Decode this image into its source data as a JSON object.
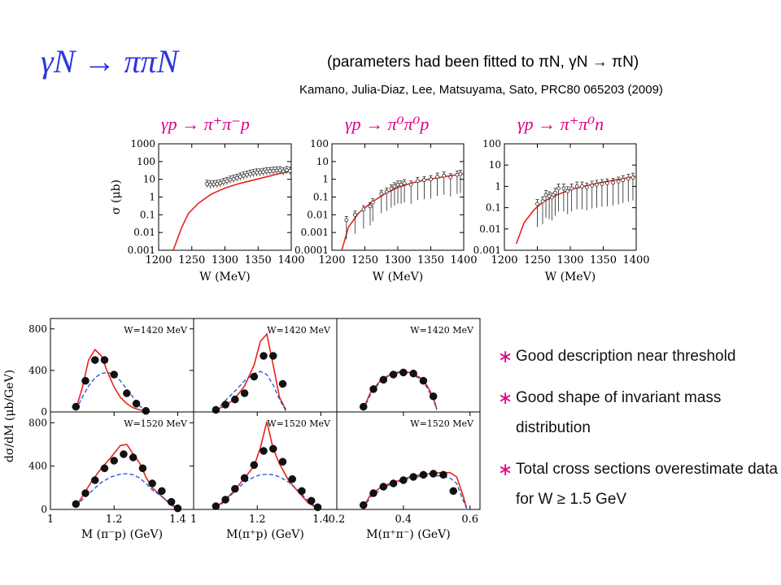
{
  "slide": {
    "title": "γN → ππN",
    "note": "(parameters had been fitted to πN, γN → πN)",
    "citation": "Kamano, Julia-Diaz, Lee, Matsuyama, Sato, PRC80 065203 (2009)",
    "reactions": [
      "γp → π⁺π⁻p",
      "γp → π⁰π⁰p",
      "γp → π⁺π⁰n"
    ],
    "bullets": [
      {
        "text": "Good description near threshold"
      },
      {
        "text": "Good shape of invariant mass distribution"
      },
      {
        "text": "Total cross sections overestimate data for W ≥ 1.5 GeV"
      }
    ],
    "colors": {
      "title": "#2b34e0",
      "reaction": "#e2008a",
      "model": "#e8231b",
      "alt_model": "#1f4fd6",
      "bullet_star": "#e2008a"
    }
  },
  "chart_data": [
    {
      "type": "line",
      "scale_y": "log",
      "xlabel": "W (MeV)",
      "ylabel": "σ (μb)",
      "xlim": [
        1200,
        1400
      ],
      "ylim": [
        0.001,
        1000
      ],
      "xticks": [
        "1200",
        "1250",
        "1300",
        "1350",
        "1400"
      ],
      "yticks": [
        "0.001",
        "0.01",
        "0.1",
        "1",
        "10",
        "100",
        "1000"
      ],
      "series": [
        {
          "kind": "line",
          "x": [
            1222,
            1235,
            1245,
            1260,
            1280,
            1300,
            1320,
            1340,
            1360,
            1380,
            1395
          ],
          "y": [
            0.001,
            0.02,
            0.12,
            0.45,
            1.5,
            3.2,
            5.5,
            8.5,
            13,
            20,
            26
          ]
        },
        {
          "kind": "points",
          "x": [
            1273,
            1278,
            1283,
            1288,
            1293,
            1298,
            1303,
            1308,
            1313,
            1318,
            1323,
            1328,
            1333,
            1338,
            1343,
            1348,
            1353,
            1358,
            1363,
            1368,
            1373,
            1378,
            1383,
            1388,
            1393,
            1398
          ],
          "y": [
            5.5,
            5.0,
            5.2,
            5.5,
            6,
            7,
            8,
            9.5,
            10.5,
            12,
            14,
            16,
            18,
            20,
            22,
            24,
            24,
            26,
            28,
            29,
            30,
            31,
            32,
            28,
            33,
            30
          ]
        }
      ]
    },
    {
      "type": "line",
      "scale_y": "log",
      "xlabel": "W (MeV)",
      "ylabel": "",
      "xlim": [
        1200,
        1400
      ],
      "ylim": [
        0.0001,
        100
      ],
      "xticks": [
        "1200",
        "1250",
        "1300",
        "1350",
        "1400"
      ],
      "yticks": [
        "0.0001",
        "0.001",
        "0.01",
        "0.1",
        "1",
        "10",
        "100"
      ],
      "series": [
        {
          "kind": "line",
          "x": [
            1215,
            1225,
            1240,
            1260,
            1280,
            1300,
            1320,
            1340,
            1360,
            1380,
            1400
          ],
          "y": [
            0.0001,
            0.002,
            0.012,
            0.05,
            0.15,
            0.35,
            0.6,
            0.9,
            1.2,
            1.6,
            2.0
          ]
        },
        {
          "kind": "points",
          "x": [
            1222,
            1235,
            1248,
            1258,
            1262,
            1275,
            1283,
            1290,
            1295,
            1300,
            1305,
            1310,
            1320,
            1330,
            1340,
            1350,
            1360,
            1370,
            1380,
            1390,
            1395
          ],
          "y": [
            0.005,
            0.01,
            0.02,
            0.03,
            0.05,
            0.15,
            0.2,
            0.3,
            0.4,
            0.5,
            0.5,
            0.6,
            0.5,
            0.8,
            0.9,
            1.0,
            1.4,
            1.6,
            1.3,
            1.8,
            2.0
          ]
        }
      ]
    },
    {
      "type": "line",
      "scale_y": "log",
      "xlabel": "W (MeV)",
      "ylabel": "",
      "xlim": [
        1200,
        1400
      ],
      "ylim": [
        0.001,
        100
      ],
      "xticks": [
        "1200",
        "1250",
        "1300",
        "1350",
        "1400"
      ],
      "yticks": [
        "0.001",
        "0.01",
        "0.1",
        "1",
        "10",
        "100"
      ],
      "series": [
        {
          "kind": "line",
          "x": [
            1218,
            1230,
            1245,
            1260,
            1280,
            1300,
            1320,
            1340,
            1360,
            1380,
            1400
          ],
          "y": [
            0.002,
            0.02,
            0.08,
            0.2,
            0.4,
            0.7,
            1.0,
            1.4,
            1.8,
            2.3,
            3.0
          ]
        },
        {
          "kind": "points",
          "x": [
            1250,
            1258,
            1263,
            1268,
            1272,
            1277,
            1282,
            1290,
            1296,
            1302,
            1310,
            1318,
            1325,
            1333,
            1340,
            1348,
            1356,
            1365,
            1373,
            1380,
            1388,
            1395
          ],
          "y": [
            0.15,
            0.2,
            0.4,
            0.35,
            0.3,
            0.5,
            0.8,
            0.8,
            0.6,
            0.8,
            1.0,
            1.0,
            0.9,
            1.1,
            1.2,
            1.3,
            1.4,
            1.5,
            1.7,
            2.0,
            2.3,
            2.6
          ]
        }
      ]
    },
    {
      "type": "line",
      "panel_label": "W=1420 MeV",
      "xlabel": "",
      "ylabel": "dσ/dM (μb/GeV)",
      "xlim": [
        1.0,
        1.45
      ],
      "ylim": [
        0,
        900
      ],
      "xticks": [],
      "yticks": [
        "0",
        "400",
        "800"
      ],
      "series": [
        {
          "kind": "line",
          "style": "solid",
          "x": [
            1.08,
            1.1,
            1.12,
            1.14,
            1.16,
            1.18,
            1.2,
            1.22,
            1.24,
            1.26,
            1.28,
            1.3
          ],
          "y": [
            30,
            230,
            500,
            600,
            540,
            380,
            240,
            140,
            80,
            40,
            20,
            10
          ]
        },
        {
          "kind": "line",
          "style": "dashed",
          "x": [
            1.08,
            1.1,
            1.12,
            1.14,
            1.16,
            1.18,
            1.2,
            1.22,
            1.24,
            1.26,
            1.28,
            1.3
          ],
          "y": [
            20,
            140,
            250,
            330,
            370,
            380,
            360,
            300,
            220,
            140,
            60,
            10
          ]
        },
        {
          "kind": "points",
          "x": [
            1.08,
            1.11,
            1.14,
            1.17,
            1.2,
            1.24,
            1.27,
            1.3
          ],
          "y": [
            50,
            300,
            500,
            500,
            360,
            180,
            80,
            10
          ]
        }
      ]
    },
    {
      "type": "line",
      "panel_label": "W=1420 MeV",
      "xlabel": "",
      "ylabel": "",
      "xlim": [
        1.0,
        1.45
      ],
      "ylim": [
        0,
        900
      ],
      "xticks": [],
      "yticks": [],
      "series": [
        {
          "kind": "line",
          "style": "solid",
          "x": [
            1.07,
            1.1,
            1.13,
            1.16,
            1.19,
            1.21,
            1.23,
            1.25,
            1.27,
            1.29
          ],
          "y": [
            20,
            60,
            130,
            250,
            450,
            680,
            750,
            450,
            140,
            20
          ]
        },
        {
          "kind": "line",
          "style": "dashed",
          "x": [
            1.07,
            1.1,
            1.13,
            1.16,
            1.19,
            1.21,
            1.23,
            1.25,
            1.27,
            1.29
          ],
          "y": [
            10,
            110,
            200,
            300,
            370,
            390,
            360,
            260,
            120,
            10
          ]
        },
        {
          "kind": "points",
          "x": [
            1.07,
            1.1,
            1.13,
            1.16,
            1.19,
            1.22,
            1.25,
            1.28
          ],
          "y": [
            20,
            70,
            120,
            180,
            340,
            540,
            540,
            270
          ]
        }
      ]
    },
    {
      "type": "line",
      "panel_label": "W=1420 MeV",
      "xlabel": "",
      "ylabel": "",
      "xlim": [
        0.2,
        0.63
      ],
      "ylim": [
        0,
        900
      ],
      "xticks": [],
      "yticks": [],
      "series": [
        {
          "kind": "line",
          "style": "solid",
          "x": [
            0.28,
            0.3,
            0.33,
            0.36,
            0.39,
            0.42,
            0.45,
            0.47,
            0.49,
            0.5
          ],
          "y": [
            30,
            180,
            300,
            360,
            390,
            380,
            330,
            260,
            140,
            30
          ]
        },
        {
          "kind": "line",
          "style": "dashed",
          "x": [
            0.28,
            0.3,
            0.33,
            0.36,
            0.39,
            0.42,
            0.45,
            0.47,
            0.49,
            0.5
          ],
          "y": [
            20,
            160,
            290,
            355,
            380,
            370,
            320,
            240,
            120,
            20
          ]
        },
        {
          "kind": "points",
          "x": [
            0.28,
            0.31,
            0.34,
            0.37,
            0.4,
            0.43,
            0.46,
            0.49
          ],
          "y": [
            50,
            220,
            310,
            360,
            380,
            370,
            300,
            150
          ]
        }
      ]
    },
    {
      "type": "line",
      "panel_label": "W=1520 MeV",
      "xlabel": "M (π⁻p) (GeV)",
      "ylabel": "",
      "xlim": [
        1.0,
        1.45
      ],
      "ylim": [
        0,
        900
      ],
      "xticks": [
        "1",
        "1.2",
        "1.4"
      ],
      "yticks": [
        "0",
        "400",
        "800"
      ],
      "series": [
        {
          "kind": "line",
          "style": "solid",
          "x": [
            1.08,
            1.1,
            1.13,
            1.16,
            1.19,
            1.22,
            1.24,
            1.26,
            1.28,
            1.3,
            1.32,
            1.35,
            1.38,
            1.4
          ],
          "y": [
            20,
            120,
            260,
            380,
            480,
            590,
            600,
            510,
            430,
            300,
            200,
            120,
            40,
            10
          ]
        },
        {
          "kind": "line",
          "style": "dashed",
          "x": [
            1.08,
            1.1,
            1.13,
            1.16,
            1.19,
            1.22,
            1.24,
            1.26,
            1.28,
            1.3,
            1.32,
            1.35,
            1.38,
            1.4
          ],
          "y": [
            30,
            90,
            170,
            250,
            300,
            325,
            330,
            320,
            290,
            240,
            180,
            120,
            50,
            10
          ]
        },
        {
          "kind": "points",
          "x": [
            1.08,
            1.11,
            1.14,
            1.17,
            1.2,
            1.23,
            1.26,
            1.29,
            1.32,
            1.35,
            1.38,
            1.4
          ],
          "y": [
            50,
            150,
            270,
            380,
            450,
            510,
            480,
            380,
            240,
            170,
            70,
            10
          ]
        }
      ]
    },
    {
      "type": "line",
      "panel_label": "W=1520 MeV",
      "xlabel": "M(π⁺p) (GeV)",
      "ylabel": "",
      "xlim": [
        1.0,
        1.45
      ],
      "ylim": [
        0,
        900
      ],
      "xticks": [
        "1",
        "1.2",
        "1.4"
      ],
      "yticks": [],
      "series": [
        {
          "kind": "line",
          "style": "solid",
          "x": [
            1.07,
            1.1,
            1.13,
            1.16,
            1.19,
            1.21,
            1.23,
            1.25,
            1.27,
            1.3,
            1.33,
            1.36,
            1.39
          ],
          "y": [
            20,
            90,
            180,
            290,
            400,
            570,
            810,
            560,
            420,
            260,
            160,
            60,
            10
          ]
        },
        {
          "kind": "line",
          "style": "dashed",
          "x": [
            1.07,
            1.1,
            1.13,
            1.16,
            1.19,
            1.21,
            1.23,
            1.25,
            1.27,
            1.3,
            1.33,
            1.36,
            1.39
          ],
          "y": [
            10,
            80,
            170,
            250,
            300,
            320,
            325,
            320,
            300,
            250,
            170,
            80,
            10
          ]
        },
        {
          "kind": "points",
          "x": [
            1.07,
            1.1,
            1.13,
            1.16,
            1.19,
            1.22,
            1.25,
            1.28,
            1.31,
            1.34,
            1.37,
            1.39
          ],
          "y": [
            30,
            90,
            190,
            290,
            410,
            540,
            560,
            440,
            280,
            170,
            80,
            20
          ]
        }
      ]
    },
    {
      "type": "line",
      "panel_label": "W=1520 MeV",
      "xlabel": "M(π⁺π⁻) (GeV)",
      "ylabel": "",
      "xlim": [
        0.2,
        0.63
      ],
      "ylim": [
        0,
        900
      ],
      "xticks": [
        "0.2",
        "0.4",
        "0.6"
      ],
      "yticks": [],
      "series": [
        {
          "kind": "line",
          "style": "solid",
          "x": [
            0.28,
            0.3,
            0.33,
            0.36,
            0.39,
            0.42,
            0.45,
            0.48,
            0.51,
            0.54,
            0.56,
            0.58,
            0.59
          ],
          "y": [
            20,
            130,
            200,
            240,
            270,
            300,
            320,
            330,
            340,
            340,
            300,
            120,
            10
          ]
        },
        {
          "kind": "line",
          "style": "dashed",
          "x": [
            0.28,
            0.3,
            0.33,
            0.36,
            0.39,
            0.42,
            0.45,
            0.48,
            0.51,
            0.54,
            0.56,
            0.58,
            0.59
          ],
          "y": [
            10,
            110,
            180,
            230,
            260,
            290,
            305,
            310,
            310,
            290,
            240,
            80,
            10
          ]
        },
        {
          "kind": "points",
          "x": [
            0.28,
            0.31,
            0.34,
            0.37,
            0.4,
            0.43,
            0.46,
            0.49,
            0.52,
            0.55
          ],
          "y": [
            40,
            150,
            210,
            240,
            270,
            300,
            320,
            330,
            320,
            170
          ]
        }
      ]
    }
  ]
}
